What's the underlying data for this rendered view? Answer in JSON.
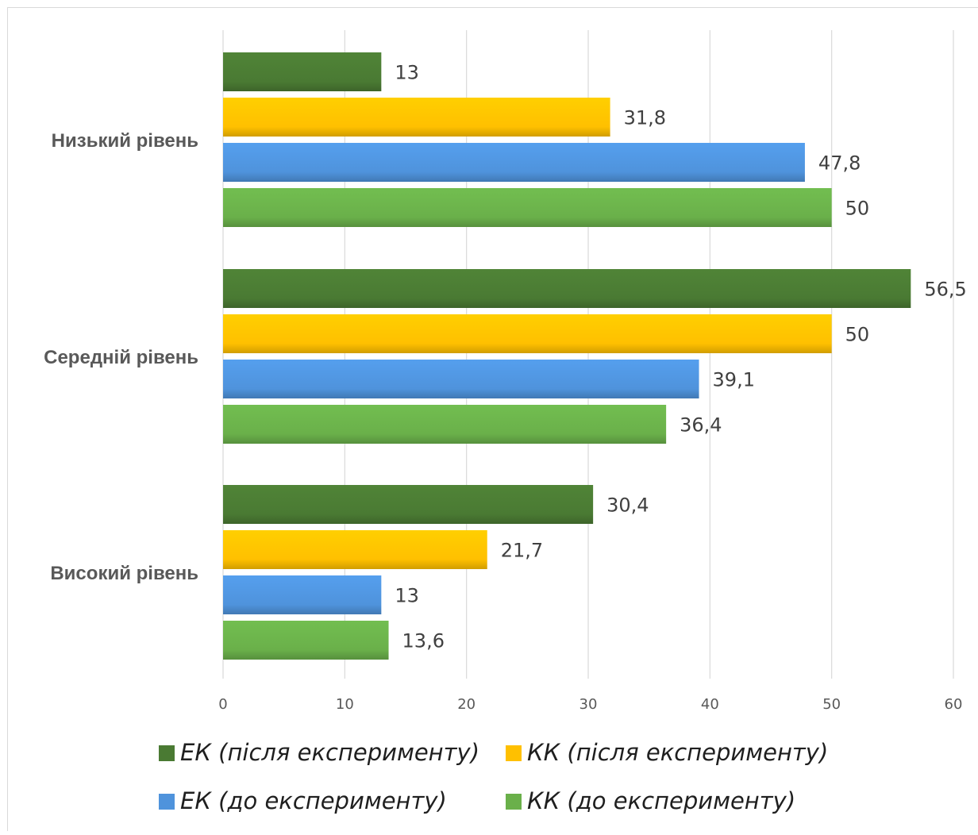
{
  "chart_data": {
    "type": "bar",
    "orientation": "horizontal",
    "categories": [
      "Низький рівень",
      "Середній рівень",
      "Високий рівень"
    ],
    "series": [
      {
        "name": "ЕК (після експерименту)",
        "color": "#4a7a33",
        "values": [
          13,
          56.5,
          30.4
        ],
        "labels": [
          "13",
          "56,5",
          "30,4"
        ]
      },
      {
        "name": "КК (після експерименту)",
        "color": "#ffc000",
        "values": [
          31.8,
          50,
          21.7
        ],
        "labels": [
          "31,8",
          "50",
          "21,7"
        ]
      },
      {
        "name": "ЕК (до експерименту)",
        "color": "#4f93dc",
        "values": [
          47.8,
          39.1,
          13
        ],
        "labels": [
          "47,8",
          "39,1",
          "13"
        ]
      },
      {
        "name": "КК (до експерименту)",
        "color": "#6ab04a",
        "values": [
          50,
          36.4,
          13.6
        ],
        "labels": [
          "50",
          "36,4",
          "13,6"
        ]
      }
    ],
    "xlim": [
      0,
      60
    ],
    "xticks": [
      0,
      10,
      20,
      30,
      40,
      50,
      60
    ],
    "grid": true,
    "legend_position": "bottom"
  }
}
